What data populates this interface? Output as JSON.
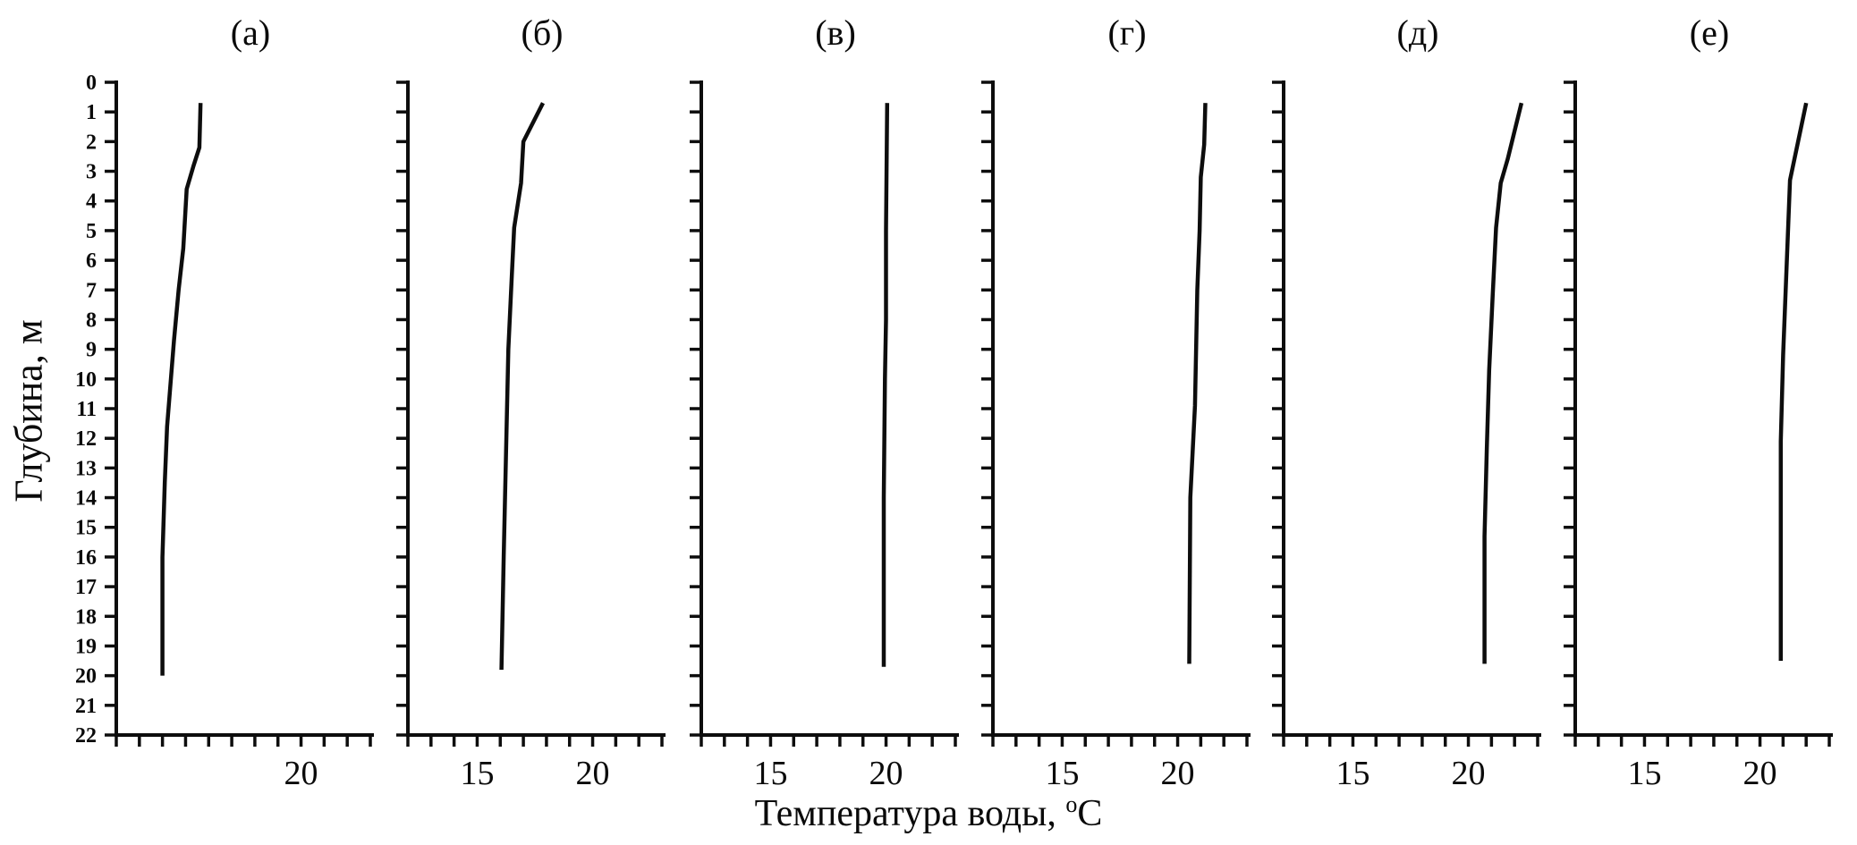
{
  "figure": {
    "background": "#ffffff",
    "line_color": "#0d0d0d",
    "text_color": "#0a0a0a"
  },
  "chart_data": {
    "type": "line",
    "title": "",
    "xlabel": "Температура воды, °С",
    "ylabel": "Глубина, м",
    "legend": "none",
    "grid": false,
    "x_axis": {
      "min": 12,
      "max": 23,
      "minor_tick_step": 1,
      "label_values_default": [
        15,
        20
      ]
    },
    "y_axis": {
      "min": 0,
      "max": 22,
      "tick_step": 1,
      "direction": "depth-down",
      "units": "m"
    },
    "panels": [
      {
        "label": "(а)",
        "x_labeled_ticks": [
          20
        ],
        "points_depth_temp": [
          [
            0.7,
            15.65
          ],
          [
            2.2,
            15.6
          ],
          [
            2.8,
            15.35
          ],
          [
            3.6,
            15.05
          ],
          [
            5.6,
            14.9
          ],
          [
            7.0,
            14.7
          ],
          [
            8.7,
            14.5
          ],
          [
            11.6,
            14.2
          ],
          [
            13.5,
            14.1
          ],
          [
            16.0,
            14.0
          ],
          [
            20.0,
            14.0
          ]
        ]
      },
      {
        "label": "(б)",
        "x_labeled_ticks": [
          15,
          20
        ],
        "points_depth_temp": [
          [
            0.7,
            17.85
          ],
          [
            2.0,
            17.0
          ],
          [
            3.4,
            16.9
          ],
          [
            4.9,
            16.6
          ],
          [
            6.5,
            16.5
          ],
          [
            9.0,
            16.35
          ],
          [
            12.5,
            16.25
          ],
          [
            16.0,
            16.15
          ],
          [
            19.8,
            16.05
          ]
        ]
      },
      {
        "label": "(в)",
        "x_labeled_ticks": [
          15,
          20
        ],
        "points_depth_temp": [
          [
            0.7,
            20.05
          ],
          [
            5.0,
            20.0
          ],
          [
            8.0,
            20.0
          ],
          [
            10.0,
            19.95
          ],
          [
            14.0,
            19.9
          ],
          [
            19.7,
            19.9
          ]
        ]
      },
      {
        "label": "(г)",
        "x_labeled_ticks": [
          15,
          20
        ],
        "points_depth_temp": [
          [
            0.7,
            21.2
          ],
          [
            2.1,
            21.15
          ],
          [
            3.2,
            21.0
          ],
          [
            5.0,
            20.95
          ],
          [
            7.0,
            20.85
          ],
          [
            10.9,
            20.75
          ],
          [
            14.0,
            20.55
          ],
          [
            19.6,
            20.5
          ]
        ]
      },
      {
        "label": "(д)",
        "x_labeled_ticks": [
          15,
          20
        ],
        "points_depth_temp": [
          [
            0.7,
            22.3
          ],
          [
            2.6,
            21.7
          ],
          [
            3.4,
            21.4
          ],
          [
            4.9,
            21.2
          ],
          [
            7.2,
            21.05
          ],
          [
            9.7,
            20.9
          ],
          [
            12.3,
            20.8
          ],
          [
            15.3,
            20.7
          ],
          [
            19.6,
            20.7
          ]
        ]
      },
      {
        "label": "(е)",
        "x_labeled_ticks": [
          15,
          20
        ],
        "points_depth_temp": [
          [
            0.7,
            22.0
          ],
          [
            3.3,
            21.3
          ],
          [
            5.3,
            21.2
          ],
          [
            9.2,
            21.0
          ],
          [
            12.1,
            20.9
          ],
          [
            19.5,
            20.9
          ]
        ]
      }
    ]
  }
}
